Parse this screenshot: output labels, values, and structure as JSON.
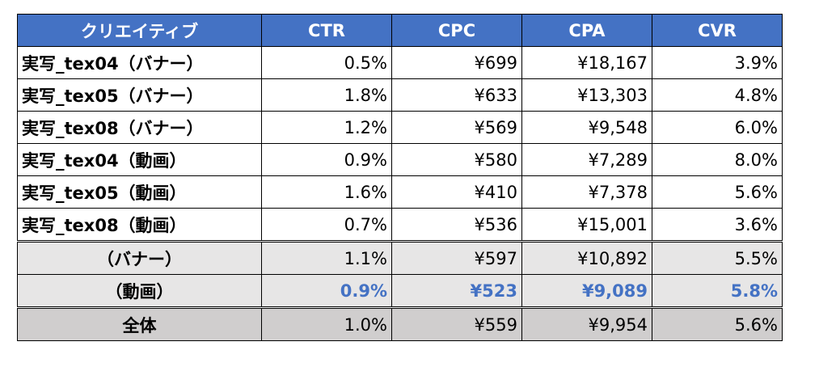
{
  "table": {
    "header": [
      "クリエイティブ",
      "CTR",
      "CPC",
      "CPA",
      "CVR"
    ],
    "rows": [
      [
        "実写_tex04（バナー）",
        "0.5%",
        "¥699",
        "¥18,167",
        "3.9%"
      ],
      [
        "実写_tex05（バナー）",
        "1.8%",
        "¥633",
        "¥13,303",
        "4.8%"
      ],
      [
        "実写_tex08（バナー）",
        "1.2%",
        "¥569",
        "¥9,548",
        "6.0%"
      ],
      [
        "実写_tex04（動画）",
        "0.9%",
        "¥580",
        "¥7,289",
        "8.0%"
      ],
      [
        "実写_tex05（動画）",
        "1.6%",
        "¥410",
        "¥7,378",
        "5.6%"
      ],
      [
        "実写_tex08（動画）",
        "0.7%",
        "¥536",
        "¥15,001",
        "3.6%"
      ],
      [
        "（バナー）",
        "1.1%",
        "¥597",
        "¥10,892",
        "5.5%"
      ],
      [
        "（動画）",
        "0.9%",
        "¥523",
        "¥9,089",
        "5.8%"
      ],
      [
        "全体",
        "1.0%",
        "¥559",
        "¥9,954",
        "5.6%"
      ]
    ]
  }
}
